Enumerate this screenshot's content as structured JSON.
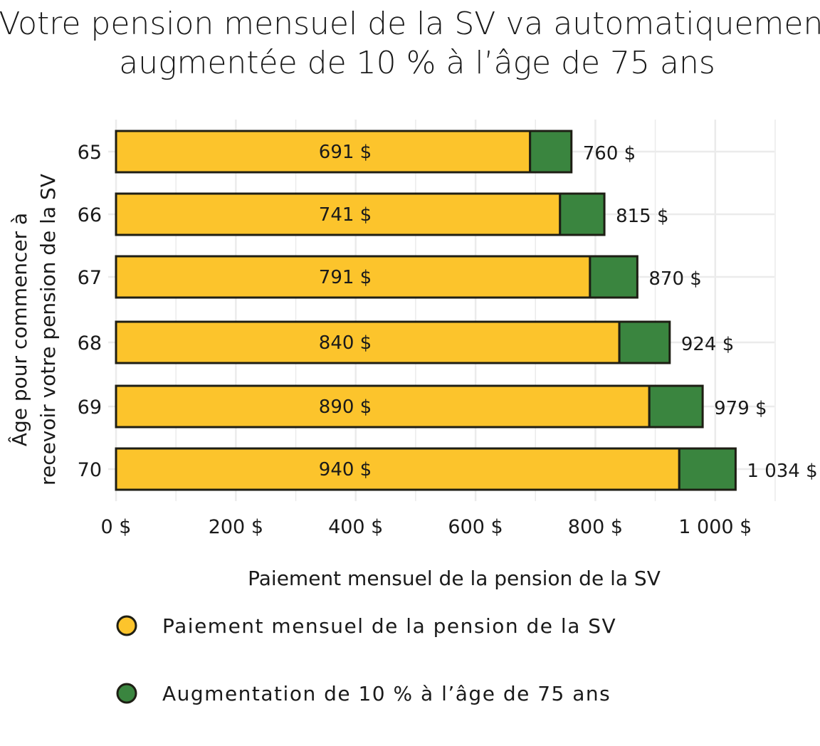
{
  "chart_data": {
    "type": "bar",
    "orientation": "horizontal",
    "stacked": true,
    "title": [
      "Votre pension mensuel de la SV va automatiquement",
      "augmentée de 10 % à l’âge de 75 ans"
    ],
    "xlabel": "Paiement mensuel de la pension de la SV",
    "ylabel": [
      "Âge pour commencer à",
      "recevoir votre pension de la SV"
    ],
    "categories": [
      "65",
      "66",
      "67",
      "68",
      "69",
      "70"
    ],
    "series": [
      {
        "name": "Paiement mensuel de la pension de la SV",
        "color": "#FCC42C",
        "values": [
          691,
          741,
          791,
          840,
          890,
          940
        ],
        "labels": [
          "691 $",
          "741 $",
          "791 $",
          "840 $",
          "890 $",
          "940 $"
        ]
      },
      {
        "name": "Augmentation de 10 % à l’âge de 75 ans",
        "color": "#3A853F",
        "values": [
          69,
          74,
          79,
          84,
          89,
          94
        ]
      }
    ],
    "totals": [
      760,
      815,
      870,
      924,
      979,
      1034
    ],
    "total_labels": [
      "760 $",
      "815 $",
      "870 $",
      "924 $",
      "979 $",
      "1 034 $"
    ],
    "xlim": [
      0,
      1100
    ],
    "xticks": [
      0,
      200,
      400,
      600,
      800,
      1000
    ],
    "xtick_labels": [
      "0 $",
      "200 $",
      "400 $",
      "600 $",
      "800 $",
      "1 000 $"
    ],
    "grid": true,
    "legend_position": "bottom",
    "colors": {
      "outline": "#1E1E14",
      "grid": "#EBEBEB",
      "text": "#1A1A1A"
    }
  }
}
